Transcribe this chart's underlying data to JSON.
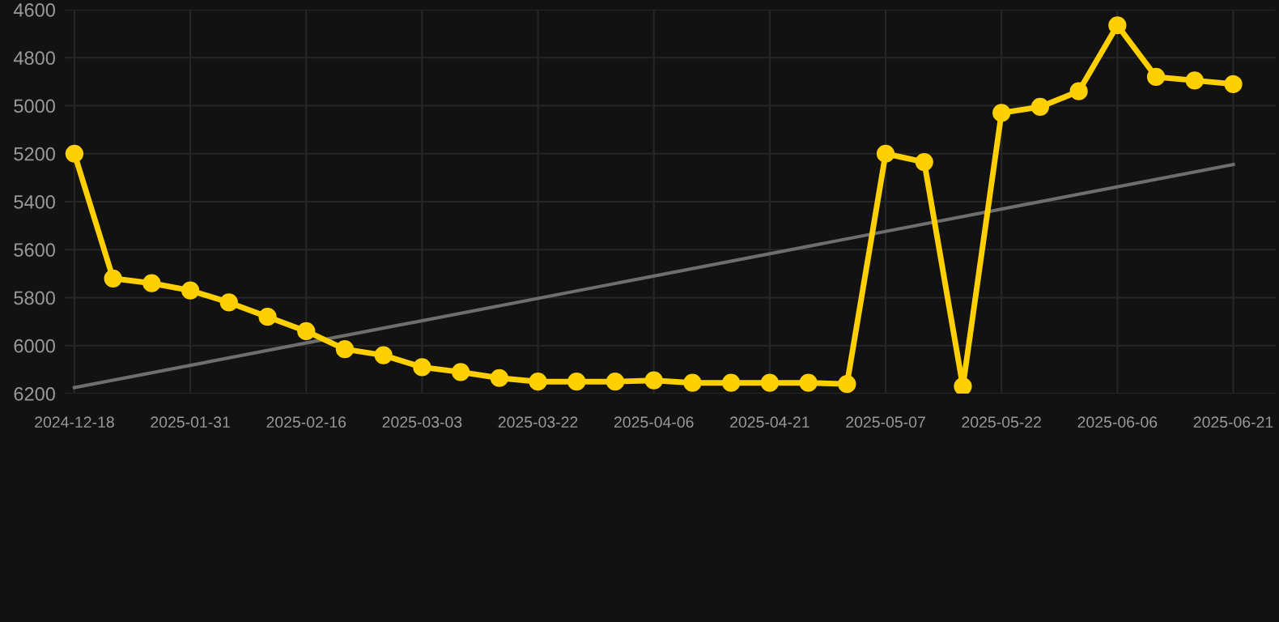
{
  "chart_data": {
    "type": "line",
    "categories": [
      "2024-12-18",
      null,
      null,
      "2025-01-31",
      null,
      null,
      "2025-02-16",
      null,
      null,
      "2025-03-03",
      null,
      null,
      "2025-03-22",
      null,
      null,
      "2025-04-06",
      null,
      null,
      "2025-04-21",
      null,
      null,
      "2025-05-07",
      null,
      null,
      "2025-05-22",
      null,
      null,
      "2025-06-06",
      null,
      null,
      "2025-06-21"
    ],
    "series": [
      {
        "color": "#ffd000",
        "marker": "circle",
        "values": [
          5200,
          5720,
          5740,
          5770,
          5820,
          5880,
          5940,
          6015,
          6040,
          6090,
          6110,
          6135,
          6150,
          6150,
          6150,
          6145,
          6155,
          6155,
          6155,
          6155,
          6160,
          5200,
          5235,
          6170,
          5030,
          5005,
          4940,
          4665,
          4880,
          4895,
          4910
        ]
      },
      {
        "type": "line",
        "color": "#6e6e6e",
        "marker": "none",
        "values": [
          6175,
          null,
          null,
          null,
          null,
          null,
          null,
          null,
          null,
          null,
          null,
          null,
          null,
          null,
          null,
          null,
          null,
          null,
          null,
          null,
          null,
          null,
          null,
          null,
          null,
          null,
          null,
          null,
          null,
          null,
          5245
        ]
      }
    ],
    "ylim": [
      6200,
      4600
    ],
    "yticks": [
      4600,
      4800,
      5000,
      5200,
      5400,
      5600,
      5800,
      6000,
      6200
    ],
    "grid": true
  }
}
